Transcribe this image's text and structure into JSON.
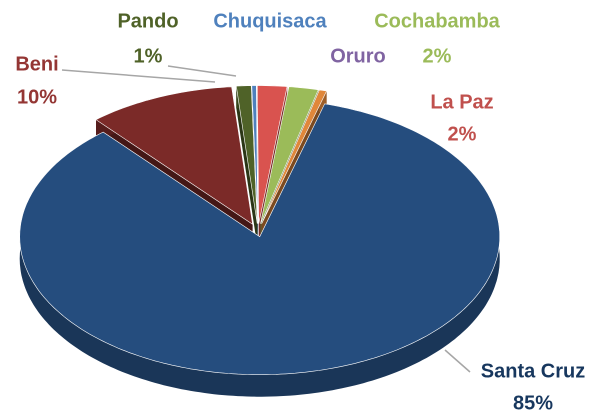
{
  "chart_data": {
    "type": "pie3d",
    "categories": [
      "Pando",
      "Chuquisaca",
      "La Paz",
      "Cochabamba",
      "Oruro",
      "Santa Cruz",
      "Beni"
    ],
    "values": [
      1,
      0.3,
      2,
      2,
      0.5,
      85,
      10
    ],
    "value_labels": [
      "1%",
      null,
      "2%",
      "2%",
      null,
      "85%",
      "10%"
    ],
    "colors": [
      "#4f6228",
      "#4f81bd",
      "#d9534f",
      "#9bbb59",
      "#e0873a",
      "#254d7e",
      "#7b2a28"
    ],
    "label_colors": [
      "#4f6228",
      "#4f81bd",
      "#c0504d",
      "#9bbb59",
      "#8064a2",
      "#17375e",
      "#943634"
    ]
  }
}
